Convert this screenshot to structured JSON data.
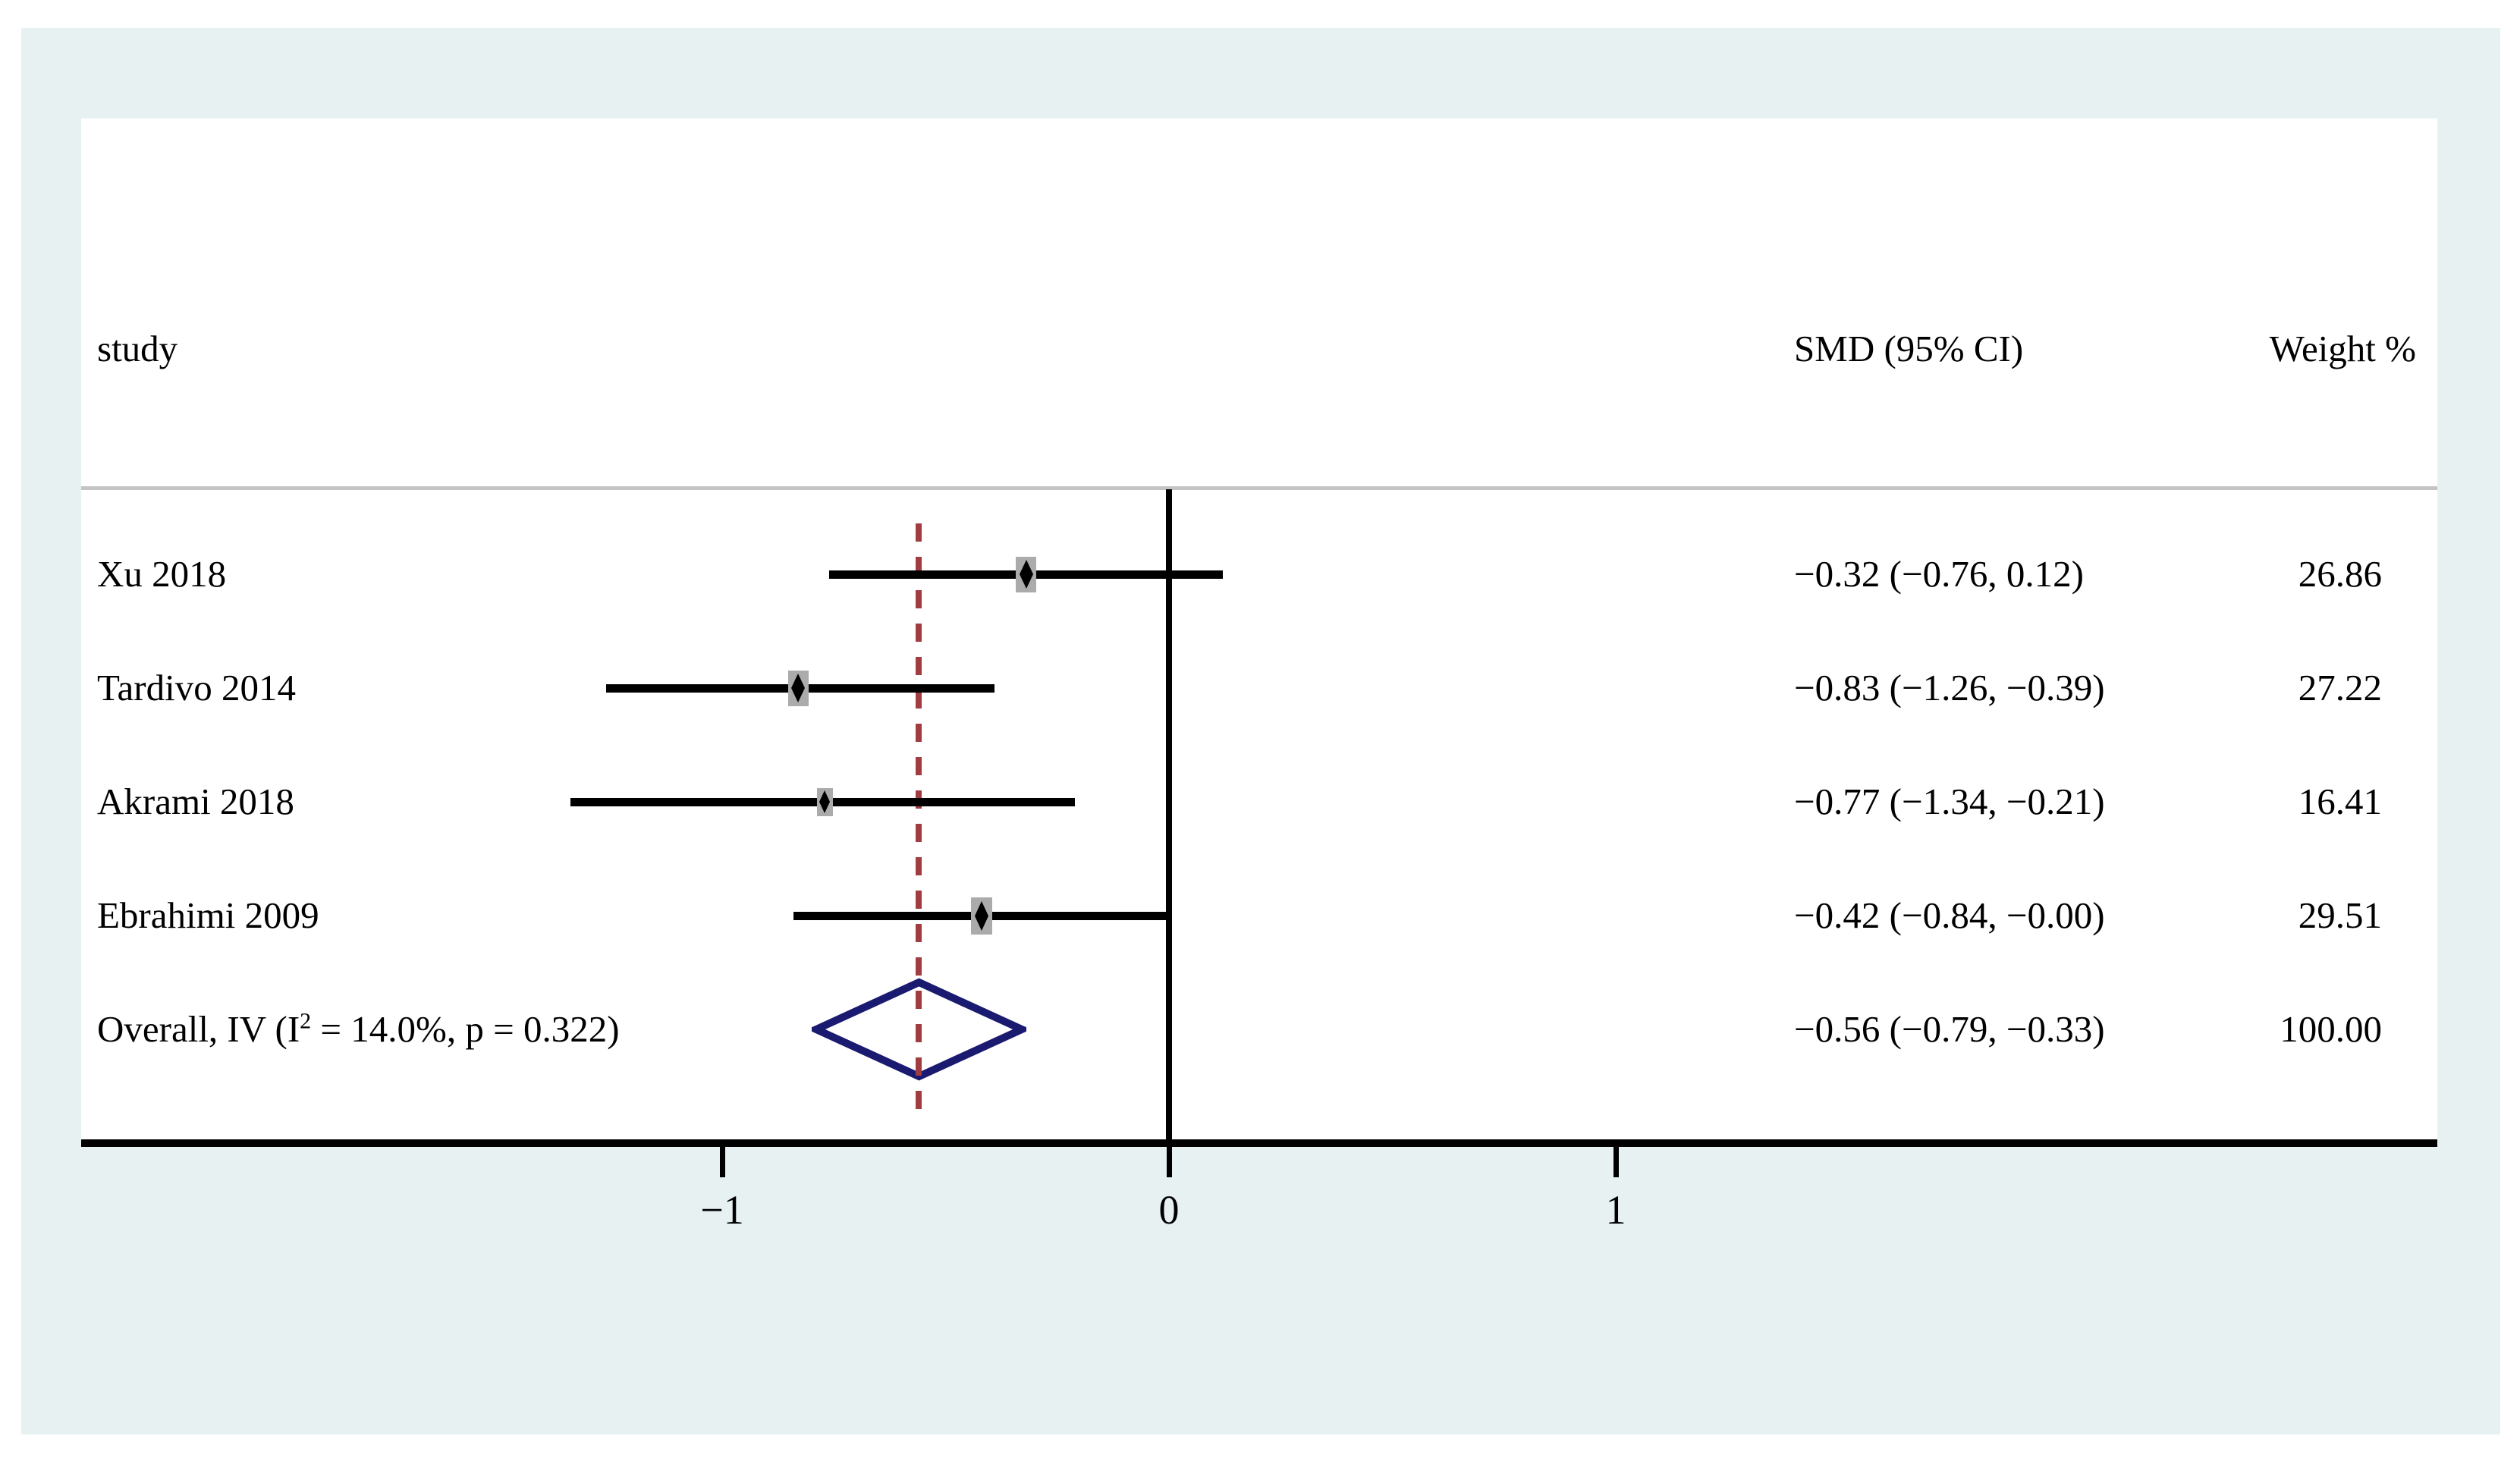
{
  "columns": {
    "study": "study",
    "smd": "SMD (95% CI)",
    "weight": "Weight %"
  },
  "chart_data": {
    "type": "forest",
    "effect_measure": "SMD (95% CI)",
    "studies": [
      {
        "label": "Xu 2018",
        "smd": -0.32,
        "ci": [
          -0.76,
          0.12
        ],
        "smd_text": "−0.32 (−0.76, 0.12)",
        "weight": 26.86,
        "weight_text": "26.86"
      },
      {
        "label": "Tardivo 2014",
        "smd": -0.83,
        "ci": [
          -1.26,
          -0.39
        ],
        "smd_text": "−0.83 (−1.26, −0.39)",
        "weight": 27.22,
        "weight_text": "27.22"
      },
      {
        "label": "Akrami 2018",
        "smd": -0.77,
        "ci": [
          -1.34,
          -0.21
        ],
        "smd_text": "−0.77 (−1.34, −0.21)",
        "weight": 16.41,
        "weight_text": "16.41"
      },
      {
        "label": "Ebrahimi 2009",
        "smd": -0.42,
        "ci": [
          -0.84,
          -0.0
        ],
        "smd_text": "−0.42 (−0.84, −0.00)",
        "weight": 29.51,
        "weight_text": "29.51"
      }
    ],
    "overall": {
      "label_prefix": "Overall, IV (I",
      "label_sup": "2",
      "label_suffix": " = 14.0%, p = 0.322)",
      "i_squared": "14.0%",
      "p_value": "0.322",
      "smd": -0.56,
      "ci": [
        -0.79,
        -0.33
      ],
      "smd_text": "−0.56 (−0.79, −0.33)",
      "weight_text": "100.00"
    },
    "x_axis": {
      "ticks": [
        -1,
        0,
        1
      ],
      "tick_labels": [
        "−1",
        "0",
        "1"
      ],
      "no_effect_line_x": 0,
      "overall_dashed_line_x": -0.56
    },
    "colors": {
      "background": "#e7f1f2",
      "panel": "#ffffff",
      "ci_line": "#000000",
      "weight_box": "#ababab",
      "point_marker": "#000000",
      "overall_diamond_border": "#1a1a70",
      "overall_dashed_line": "#a13c40",
      "header_separator": "#c4c4c4",
      "axis": "#000000"
    }
  }
}
